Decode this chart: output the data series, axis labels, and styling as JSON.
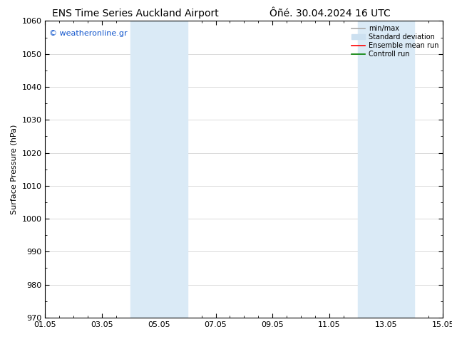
{
  "title_left": "ENS Time Series Auckland Airport",
  "title_right": "Ôñé. 30.04.2024 16 UTC",
  "ylabel": "Surface Pressure (hPa)",
  "ylim": [
    970,
    1060
  ],
  "yticks": [
    970,
    980,
    990,
    1000,
    1010,
    1020,
    1030,
    1040,
    1050,
    1060
  ],
  "xlim_start": 0,
  "xlim_end": 14,
  "xtick_labels": [
    "01.05",
    "03.05",
    "05.05",
    "07.05",
    "09.05",
    "11.05",
    "13.05",
    "15.05"
  ],
  "xtick_positions": [
    0,
    2,
    4,
    6,
    8,
    10,
    12,
    14
  ],
  "shaded_bands": [
    {
      "x_start": 3.0,
      "x_end": 5.0,
      "color": "#daeaf6"
    },
    {
      "x_start": 11.0,
      "x_end": 13.0,
      "color": "#daeaf6"
    }
  ],
  "watermark_text": "© weatheronline.gr",
  "watermark_color": "#1155cc",
  "legend_entries": [
    {
      "label": "min/max",
      "color": "#aaaaaa",
      "lw": 1.2
    },
    {
      "label": "Standard deviation",
      "color": "#cce0f0",
      "lw": 6
    },
    {
      "label": "Ensemble mean run",
      "color": "#ff0000",
      "lw": 1.2
    },
    {
      "label": "Controll run",
      "color": "#008000",
      "lw": 1.2
    }
  ],
  "bg_color": "#ffffff",
  "grid_color": "#cccccc",
  "title_fontsize": 10,
  "axis_label_fontsize": 8,
  "tick_fontsize": 8,
  "minor_tick_count": 4
}
